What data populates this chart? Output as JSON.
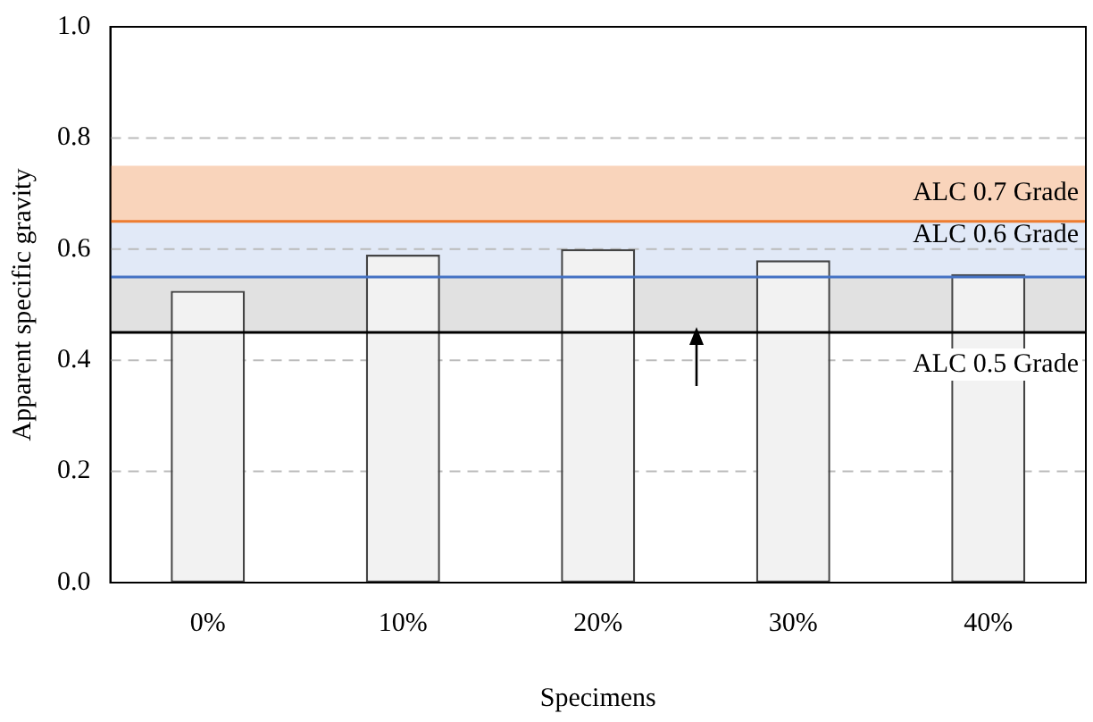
{
  "chart_data": {
    "type": "bar",
    "xlabel": "Specimens",
    "ylabel": "Apparent specific gravity",
    "categories": [
      "0%",
      "10%",
      "20%",
      "30%",
      "40%"
    ],
    "values": [
      0.525,
      0.59,
      0.6,
      0.58,
      0.555
    ],
    "color": "#f2f2f2",
    "ylim": [
      0,
      1
    ],
    "yticks": [
      {
        "value": 0,
        "label": "0.0"
      },
      {
        "value": 0.2,
        "label": "0.2"
      },
      {
        "value": 0.4,
        "label": "0.4"
      },
      {
        "value": 0.6,
        "label": "0.6"
      },
      {
        "value": 0.8,
        "label": "0.8"
      },
      {
        "value": 1,
        "label": "1.0"
      }
    ],
    "grid": "y",
    "ref_lines": [
      {
        "axis": "y",
        "value": 0.65,
        "color": "#ed7d31"
      },
      {
        "axis": "y",
        "value": 0.55,
        "color": "#4472c4"
      },
      {
        "axis": "y",
        "value": 0.45,
        "color": "#000000"
      }
    ],
    "bands": [
      {
        "axis": "y",
        "from": 0.65,
        "to": 0.75,
        "label": "ALC 0.7 Grade",
        "color": "#f4b183"
      },
      {
        "axis": "y",
        "from": 0.55,
        "to": 0.65,
        "label": "ALC 0.6 Grade",
        "color": "#c9d7f0"
      },
      {
        "axis": "y",
        "from": 0.45,
        "to": 0.55,
        "label": "ALC 0.5 Grade",
        "color": "#c8c8c8"
      }
    ]
  }
}
